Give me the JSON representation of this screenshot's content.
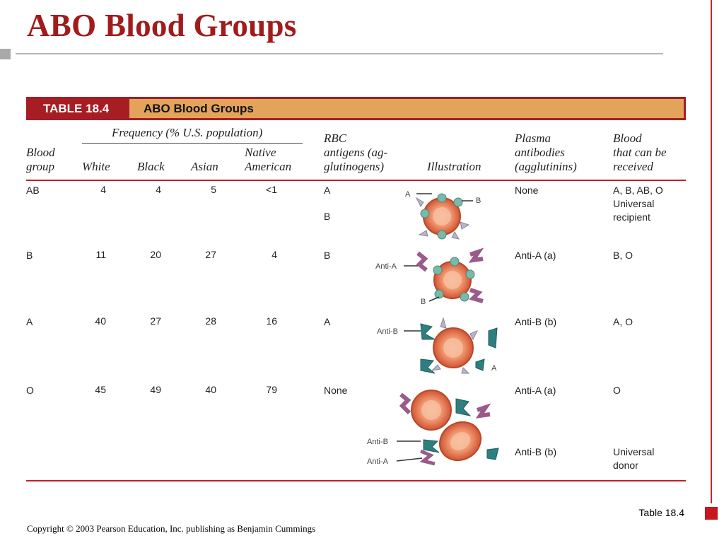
{
  "slide": {
    "title": "ABO Blood Groups",
    "caption": "Table 18.4",
    "copyright": "Copyright © 2003 Pearson Education, Inc. publishing as Benjamin Cummings"
  },
  "table": {
    "number": "TABLE 18.4",
    "title": "ABO Blood Groups",
    "headers": {
      "blood_group": "Blood\ngroup",
      "frequency": "Frequency (% U.S. population)",
      "white": "White",
      "black": "Black",
      "asian": "Asian",
      "native_american": "Native\nAmerican",
      "rbc_antigens": "RBC\nantigens (ag-\nglutinogens)",
      "illustration": "Illustration",
      "plasma_antibodies": "Plasma\nantibodies\n(agglutinins)",
      "blood_received": "Blood\nthat can be\nreceived"
    },
    "rows": [
      {
        "group": "AB",
        "white": "4",
        "black": "4",
        "asian": "5",
        "native": "<1",
        "antigens": [
          "A",
          "B"
        ],
        "antibodies": [
          "None"
        ],
        "received": [
          "A, B, AB, O\nUniversal\nrecipient"
        ]
      },
      {
        "group": "B",
        "white": "11",
        "black": "20",
        "asian": "27",
        "native": "4",
        "antigens": [
          "B"
        ],
        "antibodies": [
          "Anti-A (a)"
        ],
        "received": [
          "B, O"
        ]
      },
      {
        "group": "A",
        "white": "40",
        "black": "27",
        "asian": "28",
        "native": "16",
        "antigens": [
          "A"
        ],
        "antibodies": [
          "Anti-B (b)"
        ],
        "received": [
          "A, O"
        ]
      },
      {
        "group": "O",
        "white": "45",
        "black": "49",
        "asian": "40",
        "native": "79",
        "antigens": [
          "None"
        ],
        "antibodies": [
          "Anti-A (a)",
          "Anti-B (b)"
        ],
        "received": [
          "O",
          "Universal\ndonor"
        ]
      }
    ],
    "illustration_labels": {
      "ab_a": "A",
      "ab_b": "B",
      "b_anti_a": "Anti-A",
      "b_b": "B",
      "a_anti_b": "Anti-B",
      "a_a": "A",
      "o_anti_b": "Anti-B",
      "o_anti_a": "Anti-A"
    }
  },
  "colors": {
    "title": "#a01c1c",
    "banner": "#a61e24",
    "banner_title_box": "#e3a35b",
    "rule": "#c0202a",
    "cell_outer": "#d9673f",
    "cell_inner": "#f0a07a",
    "antigen_b": "#7ab8a8",
    "antigen_a": "#b9b4c8",
    "antibody_a": "#9a5a8a",
    "antibody_b": "#2f7f80"
  }
}
